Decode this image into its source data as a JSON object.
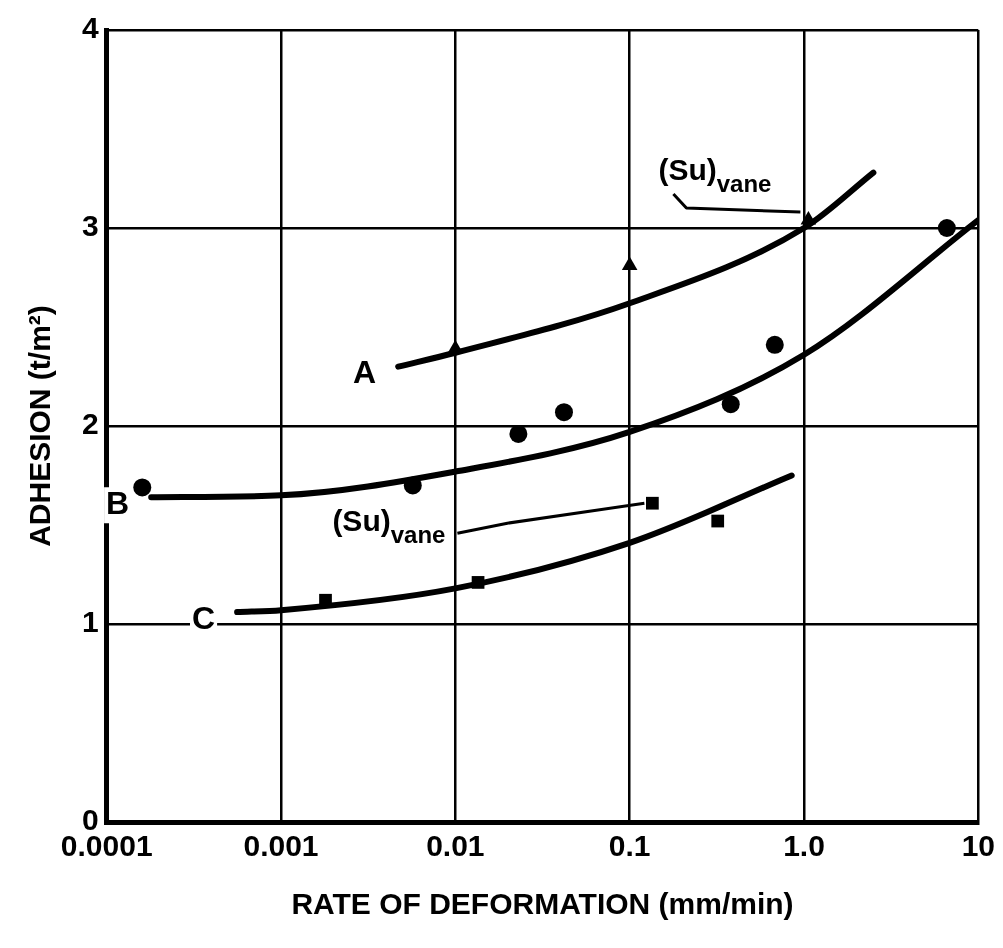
{
  "chart_data": {
    "type": "scatter",
    "xlabel": "RATE OF DEFORMATION (mm/min)",
    "ylabel": "ADHESION (t/m²)",
    "log": "x",
    "xlim": [
      0.0001,
      10
    ],
    "xticks": [
      0.0001,
      0.001,
      0.01,
      0.1,
      {
        "value": 1,
        "label": "1.0"
      },
      10
    ],
    "ylim": [
      0,
      4
    ],
    "yticks": [
      0,
      1,
      2,
      3,
      4
    ],
    "grid": true,
    "legend": false,
    "series": [
      {
        "type": "line",
        "name": "A",
        "color": "#000000",
        "marker": "none",
        "x": [
          0.0047,
          0.01,
          0.1,
          1,
          2.5
        ],
        "values": [
          2.3,
          2.37,
          2.62,
          3.0,
          3.28
        ]
      },
      {
        "type": "line",
        "name": "B",
        "color": "#000000",
        "marker": "none",
        "x": [
          0.00018,
          0.001,
          0.01,
          0.1,
          1,
          10
        ],
        "values": [
          1.64,
          1.65,
          1.77,
          1.97,
          2.36,
          3.04
        ]
      },
      {
        "type": "line",
        "name": "C",
        "color": "#000000",
        "marker": "none",
        "x": [
          0.00056,
          0.001,
          0.01,
          0.1,
          0.85
        ],
        "values": [
          1.06,
          1.07,
          1.18,
          1.41,
          1.75
        ]
      },
      {
        "color": "#000000",
        "marker": "triangle",
        "x": [
          0.01,
          0.1,
          1.06
        ],
        "values": [
          2.39,
          2.81,
          3.04
        ]
      },
      {
        "color": "#000000",
        "marker": "circle",
        "x": [
          0.00016,
          0.0057,
          0.023,
          0.042,
          0.38,
          0.68,
          6.6
        ],
        "values": [
          1.69,
          1.7,
          1.96,
          2.07,
          2.11,
          2.41,
          3.0
        ]
      },
      {
        "color": "#000000",
        "marker": "square",
        "x": [
          0.0018,
          0.0135,
          0.135,
          0.32
        ],
        "values": [
          1.12,
          1.21,
          1.61,
          1.52
        ]
      }
    ],
    "annotations": [
      {
        "text": "(Su)$_{vane}$",
        "x": 1.06,
        "y": 3.04
      },
      {
        "text": "(Su)$_{vane}$",
        "x": 0.135,
        "y": 1.61
      }
    ]
  }
}
